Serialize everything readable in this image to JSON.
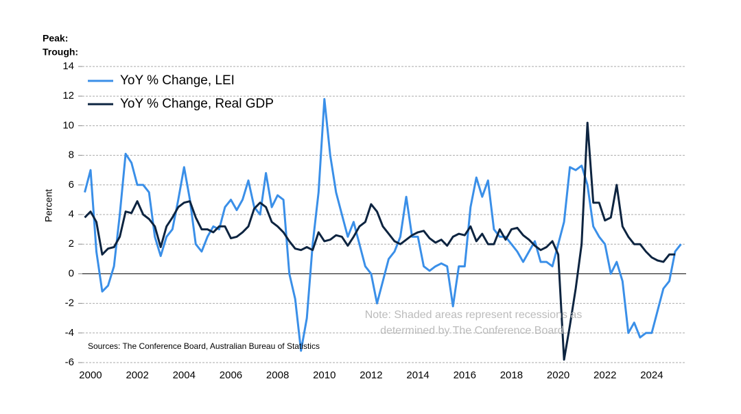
{
  "chart_data": {
    "type": "line",
    "header_labels": [
      "Peak:",
      "Trough:"
    ],
    "y_label": "Percent",
    "note": [
      "Note: Shaded areas represent recessions as",
      "determined by The Conference Board."
    ],
    "source": "Sources: The Conference Board, Australian Bureau of Statistics",
    "x": [
      1999.75,
      2000,
      2000.25,
      2000.5,
      2000.75,
      2001,
      2001.25,
      2001.5,
      2001.75,
      2002,
      2002.25,
      2002.5,
      2002.75,
      2003,
      2003.25,
      2003.5,
      2003.75,
      2004,
      2004.25,
      2004.5,
      2004.75,
      2005,
      2005.25,
      2005.5,
      2005.75,
      2006,
      2006.25,
      2006.5,
      2006.75,
      2007,
      2007.25,
      2007.5,
      2007.75,
      2008,
      2008.25,
      2008.5,
      2008.75,
      2009,
      2009.25,
      2009.5,
      2009.75,
      2010,
      2010.25,
      2010.5,
      2010.75,
      2011,
      2011.25,
      2011.5,
      2011.75,
      2012,
      2012.25,
      2012.5,
      2012.75,
      2013,
      2013.25,
      2013.5,
      2013.75,
      2014,
      2014.25,
      2014.5,
      2014.75,
      2015,
      2015.25,
      2015.5,
      2015.75,
      2016,
      2016.25,
      2016.5,
      2016.75,
      2017,
      2017.25,
      2017.5,
      2017.75,
      2018,
      2018.25,
      2018.5,
      2018.75,
      2019,
      2019.25,
      2019.5,
      2019.75,
      2020,
      2020.25,
      2020.5,
      2020.75,
      2021,
      2021.25,
      2021.5,
      2021.75,
      2022,
      2022.25,
      2022.5,
      2022.75,
      2023,
      2023.25,
      2023.5,
      2023.75,
      2024,
      2024.25,
      2024.5,
      2024.75,
      2025,
      2025.25
    ],
    "series": [
      {
        "name": "YoY % Change, LEI",
        "color": "#3a8fe8",
        "values": [
          5.5,
          7.0,
          1.5,
          -1.2,
          -0.8,
          0.5,
          4.0,
          8.1,
          7.5,
          6.0,
          6.0,
          5.5,
          2.5,
          1.2,
          2.5,
          3.0,
          5.0,
          7.2,
          5.0,
          2.0,
          1.5,
          2.5,
          3.2,
          3.0,
          4.5,
          5.0,
          4.3,
          5.0,
          6.3,
          4.5,
          4.0,
          6.8,
          4.5,
          5.3,
          5.0,
          0.0,
          -1.7,
          -5.2,
          -3.0,
          2.0,
          5.5,
          11.8,
          8.0,
          5.5,
          4.0,
          2.5,
          3.5,
          2.0,
          0.5,
          0.0,
          -2.0,
          -0.5,
          1.0,
          1.5,
          2.5,
          5.2,
          2.5,
          2.5,
          0.5,
          0.2,
          0.5,
          0.7,
          0.5,
          -2.2,
          0.5,
          0.5,
          4.5,
          6.5,
          5.2,
          6.3,
          3.0,
          2.5,
          2.5,
          2.0,
          1.5,
          0.8,
          1.5,
          2.2,
          0.8,
          0.8,
          0.5,
          2.0,
          3.5,
          7.2,
          7.0,
          7.3,
          6.0,
          3.2,
          2.5,
          2.0,
          0.0,
          0.8,
          -0.5,
          -4.0,
          -3.3,
          -4.3,
          -4.0,
          -4.0,
          -2.5,
          -1.0,
          -0.5,
          1.5,
          2.0
        ]
      },
      {
        "name": "YoY % Change, Real GDP",
        "color": "#0d2440",
        "values": [
          3.8,
          4.2,
          3.5,
          1.3,
          1.7,
          1.8,
          2.5,
          4.2,
          4.1,
          4.9,
          4.0,
          3.7,
          3.2,
          1.8,
          3.2,
          3.8,
          4.5,
          4.8,
          4.9,
          3.8,
          3.0,
          3.0,
          2.8,
          3.2,
          3.2,
          2.4,
          2.5,
          2.8,
          3.2,
          4.4,
          4.8,
          4.5,
          3.5,
          3.2,
          2.8,
          2.2,
          1.7,
          1.6,
          1.8,
          1.6,
          2.8,
          2.2,
          2.3,
          2.6,
          2.5,
          1.9,
          2.5,
          3.2,
          3.5,
          4.7,
          4.2,
          3.2,
          2.7,
          2.2,
          2.0,
          2.3,
          2.6,
          2.8,
          2.9,
          2.4,
          2.1,
          2.3,
          1.9,
          2.5,
          2.7,
          2.6,
          3.2,
          2.2,
          2.7,
          2.0,
          2.0,
          3.0,
          2.3,
          3.0,
          3.1,
          2.6,
          2.3,
          1.9,
          1.6,
          1.8,
          2.2,
          1.3,
          -5.8,
          -3.5,
          -1.0,
          2.0,
          10.2,
          4.8,
          4.8,
          3.6,
          3.8,
          6.0,
          3.2,
          2.5,
          2.0,
          2.0,
          1.5,
          1.1,
          0.9,
          0.8,
          1.3,
          1.3,
          null
        ]
      }
    ],
    "xlim": [
      1999.59,
      2025.47
    ],
    "xticks": [
      2000,
      2002,
      2004,
      2006,
      2008,
      2010,
      2012,
      2014,
      2016,
      2018,
      2020,
      2022,
      2024
    ],
    "ylim": [
      -6,
      14
    ],
    "yticks": [
      -6,
      -4,
      -2,
      0,
      2,
      4,
      6,
      8,
      10,
      12,
      14
    ],
    "grid": true
  }
}
